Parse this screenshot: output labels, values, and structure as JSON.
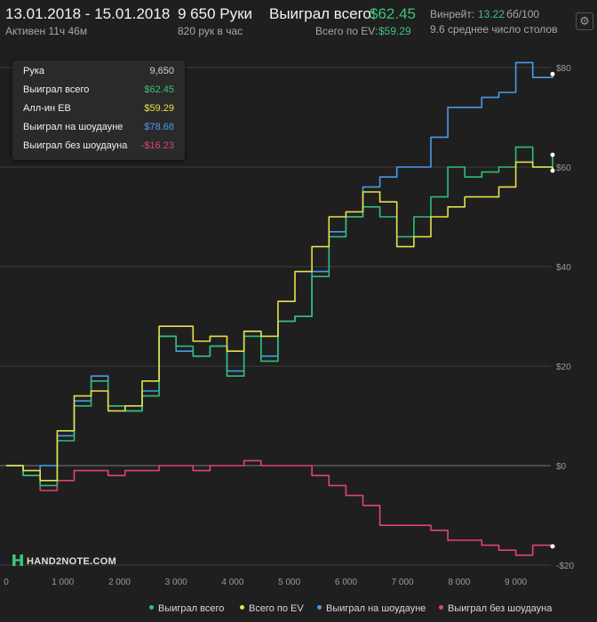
{
  "header": {
    "date_range": "13.01.2018 - 15.01.2018",
    "active": "Активен 11ч 46м",
    "hands": "9 650 Руки",
    "hands_per_hour": "820 рук в час",
    "won_total_label": "Выиграл всего:",
    "won_total_value": "$62.45",
    "ev_label": "Всего по EV:",
    "ev_value": "$59.29",
    "winrate_label": "Винрейт:",
    "winrate_value": "13.22",
    "winrate_unit": "бб/100",
    "avg_tables": "9.6 среднее число столов",
    "settings_icon": "gear-icon"
  },
  "tooltip": {
    "rows": [
      {
        "label": "Рука",
        "value": "9,650",
        "color": "#d0d0d0"
      },
      {
        "label": "Выиграл всего",
        "value": "$62.45",
        "color": "#3cc27a"
      },
      {
        "label": "Алл-ин ЕВ",
        "value": "$59.29",
        "color": "#e8e04a"
      },
      {
        "label": "Выиграл на шоудауне",
        "value": "$78.68",
        "color": "#4a9be8"
      },
      {
        "label": "Выиграл без шоудауна",
        "value": "-$16.23",
        "color": "#e0446e"
      }
    ]
  },
  "logo": "HAND2NOTE.COM",
  "chart_data": {
    "type": "line",
    "xlim": [
      0,
      9650
    ],
    "ylim": [
      -20,
      80
    ],
    "grid": true,
    "x_ticks": [
      0,
      1000,
      2000,
      3000,
      4000,
      5000,
      6000,
      7000,
      8000,
      9000
    ],
    "x_tick_labels": [
      "0",
      "1 000",
      "2 000",
      "3 000",
      "4 000",
      "5 000",
      "6 000",
      "7 000",
      "8 000",
      "9 000"
    ],
    "y_ticks": [
      -20,
      0,
      20,
      40,
      60,
      80
    ],
    "y_tick_labels": [
      "-$20",
      "$0",
      "$20",
      "$40",
      "$60",
      "$80"
    ],
    "legend_position": "bottom-right",
    "series": [
      {
        "name": "Выиграл всего",
        "color": "#2fbf77",
        "x": [
          0,
          300,
          600,
          900,
          1200,
          1500,
          1800,
          2100,
          2400,
          2700,
          3000,
          3300,
          3600,
          3900,
          4200,
          4500,
          4800,
          5100,
          5400,
          5700,
          6000,
          6300,
          6600,
          6900,
          7200,
          7500,
          7800,
          8100,
          8400,
          8700,
          9000,
          9300,
          9650
        ],
        "y": [
          0,
          -2,
          -4,
          5,
          12,
          17,
          12,
          11,
          14,
          26,
          24,
          22,
          24,
          18,
          26,
          21,
          29,
          30,
          38,
          46,
          50,
          52,
          50,
          46,
          50,
          54,
          60,
          58,
          59,
          60,
          64,
          60,
          62.45
        ]
      },
      {
        "name": "Всего по EV",
        "color": "#e8e04a",
        "x": [
          0,
          300,
          600,
          900,
          1200,
          1500,
          1800,
          2100,
          2400,
          2700,
          3000,
          3300,
          3600,
          3900,
          4200,
          4500,
          4800,
          5100,
          5400,
          5700,
          6000,
          6300,
          6600,
          6900,
          7200,
          7500,
          7800,
          8100,
          8400,
          8700,
          9000,
          9300,
          9650
        ],
        "y": [
          0,
          -1,
          -3,
          7,
          14,
          15,
          11,
          12,
          17,
          28,
          28,
          25,
          26,
          23,
          27,
          26,
          33,
          39,
          44,
          50,
          51,
          55,
          53,
          44,
          46,
          50,
          52,
          54,
          54,
          56,
          61,
          60,
          59.29
        ]
      },
      {
        "name": "Выиграл на шоудауне",
        "color": "#4a9be8",
        "x": [
          0,
          300,
          600,
          900,
          1200,
          1500,
          1800,
          2100,
          2400,
          2700,
          3000,
          3300,
          3600,
          3900,
          4200,
          4500,
          4800,
          5100,
          5400,
          5700,
          6000,
          6300,
          6600,
          6900,
          7200,
          7500,
          7800,
          8100,
          8400,
          8700,
          9000,
          9300,
          9650
        ],
        "y": [
          0,
          -2,
          0,
          6,
          13,
          18,
          12,
          11,
          15,
          26,
          23,
          22,
          24,
          19,
          27,
          22,
          29,
          30,
          39,
          47,
          50,
          56,
          58,
          60,
          60,
          66,
          72,
          72,
          74,
          75,
          81,
          78,
          78.68
        ]
      },
      {
        "name": "Выиграл без шоудауна",
        "color": "#e0446e",
        "x": [
          0,
          300,
          600,
          900,
          1200,
          1500,
          1800,
          2100,
          2400,
          2700,
          3000,
          3300,
          3600,
          3900,
          4200,
          4500,
          4800,
          5100,
          5400,
          5700,
          6000,
          6300,
          6600,
          6900,
          7200,
          7500,
          7800,
          8100,
          8400,
          8700,
          9000,
          9300,
          9650
        ],
        "y": [
          0,
          -2,
          -5,
          -3,
          -1,
          -1,
          -2,
          -1,
          -1,
          0,
          0,
          -1,
          0,
          0,
          1,
          0,
          0,
          0,
          -2,
          -4,
          -6,
          -8,
          -12,
          -12,
          -12,
          -13,
          -15,
          -15,
          -16,
          -17,
          -18,
          -16,
          -16.23
        ]
      }
    ]
  }
}
